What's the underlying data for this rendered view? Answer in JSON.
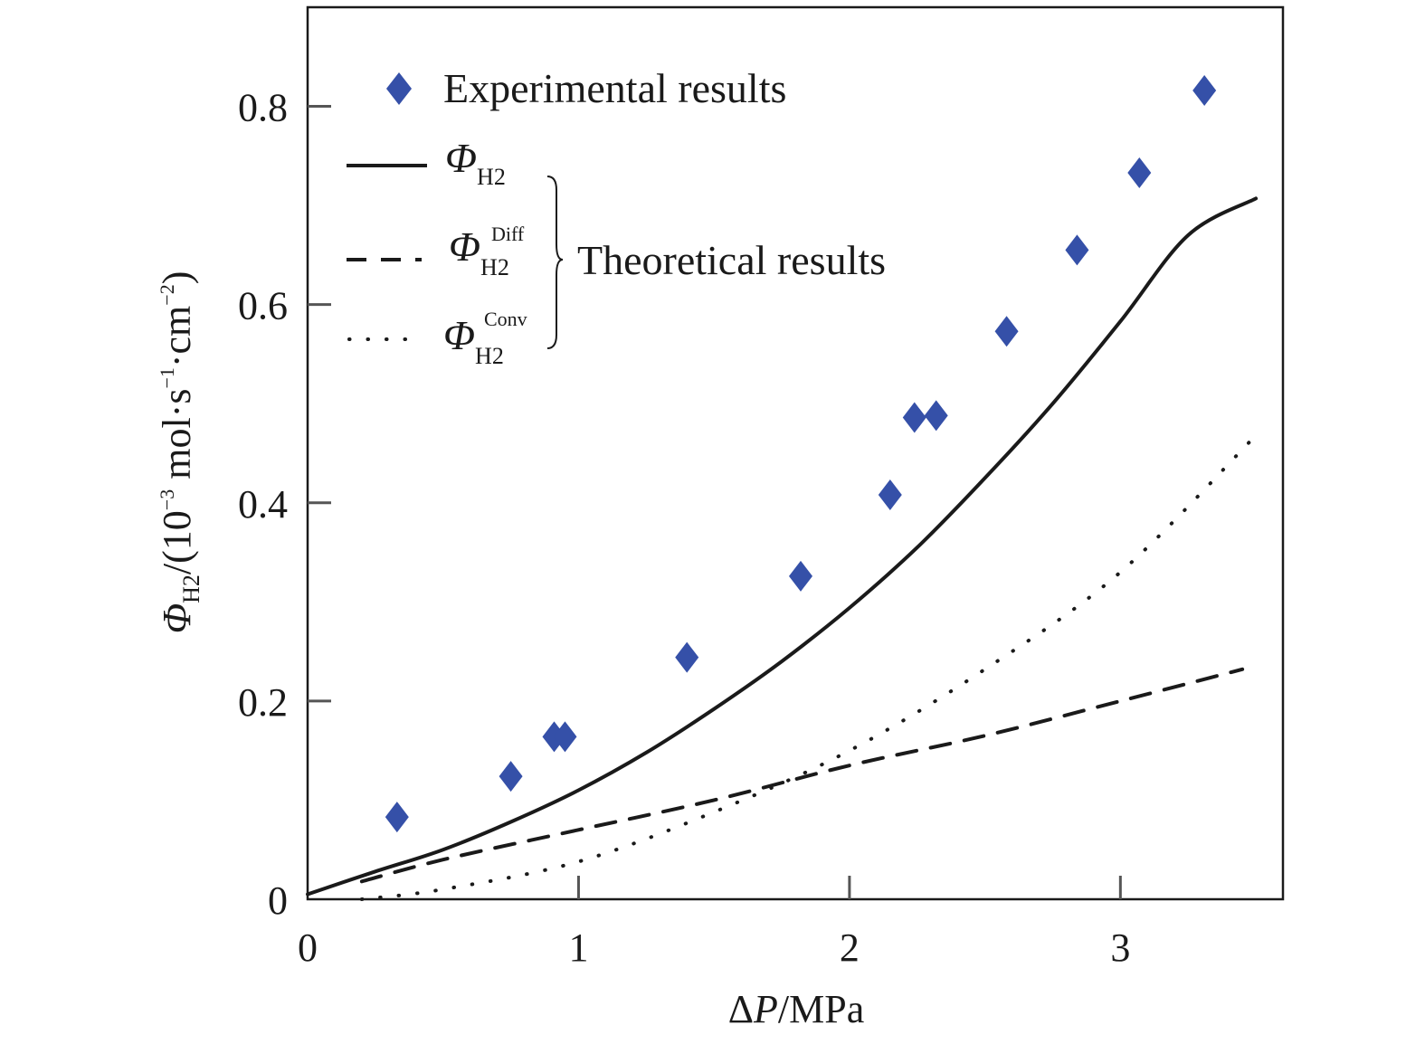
{
  "chart_data": {
    "type": "scatter",
    "xlabel": "ΔP/MPa",
    "xlabel_parts": {
      "delta": "Δ",
      "var": "P",
      "unit": "/MPa"
    },
    "ylabel_parts": {
      "symbol": "Φ",
      "sub": "H",
      "sub_digit": "2",
      "rest": "/(10",
      "exp1": "−3",
      "mid": " mol·s",
      "exp2": "−1",
      "mid2": "·cm",
      "exp3": "−2",
      "end": ")"
    },
    "xlim": [
      0,
      3.6
    ],
    "ylim": [
      0,
      0.9
    ],
    "x_ticks": [
      0,
      1,
      2,
      3
    ],
    "x_tick_labels": [
      "0",
      "1",
      "2",
      "3"
    ],
    "y_ticks": [
      0,
      0.2,
      0.4,
      0.6,
      0.8
    ],
    "y_tick_labels": [
      "0",
      "0.2",
      "0.4",
      "0.6",
      "0.8"
    ],
    "grid": false,
    "legend_position": "top-left",
    "theoretical_group_label": "Theoretical results",
    "series": [
      {
        "name": "Experimental results",
        "style": "marker",
        "marker": "diamond",
        "color": "#3550A8",
        "points": [
          [
            0.33,
            0.083
          ],
          [
            0.75,
            0.124
          ],
          [
            0.91,
            0.164
          ],
          [
            0.95,
            0.164
          ],
          [
            1.4,
            0.244
          ],
          [
            1.82,
            0.326
          ],
          [
            2.15,
            0.408
          ],
          [
            2.24,
            0.486
          ],
          [
            2.32,
            0.488
          ],
          [
            2.58,
            0.573
          ],
          [
            2.84,
            0.655
          ],
          [
            3.07,
            0.733
          ],
          [
            3.31,
            0.816
          ]
        ]
      },
      {
        "name": "Φ H2",
        "label_symbol": "Φ",
        "label_sub": "H",
        "label_sub_digit": "2",
        "label_sup": "",
        "style": "solid",
        "color": "#1a1a1a",
        "points": [
          [
            0,
            0.005
          ],
          [
            0.25,
            0.028
          ],
          [
            0.5,
            0.05
          ],
          [
            0.75,
            0.078
          ],
          [
            1.0,
            0.11
          ],
          [
            1.25,
            0.148
          ],
          [
            1.5,
            0.192
          ],
          [
            1.75,
            0.24
          ],
          [
            2.0,
            0.294
          ],
          [
            2.25,
            0.355
          ],
          [
            2.5,
            0.425
          ],
          [
            2.75,
            0.5
          ],
          [
            3.0,
            0.583
          ],
          [
            3.25,
            0.67
          ],
          [
            3.5,
            0.707
          ]
        ]
      },
      {
        "name": "Φ H2 Diff",
        "label_symbol": "Φ",
        "label_sub": "H",
        "label_sub_digit": "2",
        "label_sup": "Diff",
        "style": "dashed",
        "color": "#1a1a1a",
        "points": [
          [
            0.2,
            0.018
          ],
          [
            0.5,
            0.04
          ],
          [
            1.0,
            0.07
          ],
          [
            1.5,
            0.1
          ],
          [
            2.0,
            0.135
          ],
          [
            2.5,
            0.165
          ],
          [
            3.0,
            0.2
          ],
          [
            3.45,
            0.232
          ]
        ]
      },
      {
        "name": "Φ H2 Conv",
        "label_symbol": "Φ",
        "label_sub": "H",
        "label_sub_digit": "2",
        "label_sup": "Conv",
        "style": "dotted",
        "color": "#1a1a1a",
        "points": [
          [
            0.2,
            0.0
          ],
          [
            0.5,
            0.01
          ],
          [
            1.0,
            0.038
          ],
          [
            1.5,
            0.088
          ],
          [
            2.0,
            0.15
          ],
          [
            2.5,
            0.232
          ],
          [
            3.0,
            0.33
          ],
          [
            3.5,
            0.468
          ]
        ]
      }
    ]
  }
}
